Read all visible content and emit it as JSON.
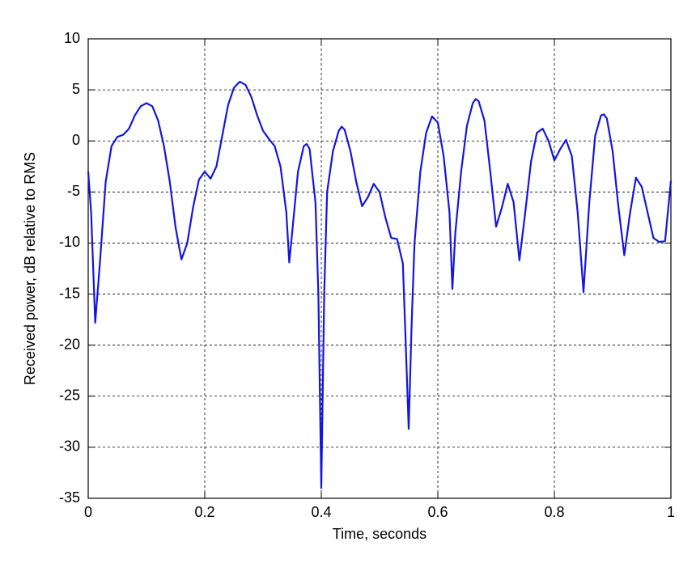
{
  "chart_data": {
    "type": "line",
    "xlabel": "Time, seconds",
    "ylabel": "Received power, dB relative to RMS",
    "x": [
      0,
      0.005,
      0.012,
      0.02,
      0.03,
      0.04,
      0.05,
      0.06,
      0.07,
      0.08,
      0.09,
      0.1,
      0.11,
      0.12,
      0.13,
      0.14,
      0.15,
      0.16,
      0.17,
      0.18,
      0.19,
      0.2,
      0.21,
      0.22,
      0.23,
      0.24,
      0.25,
      0.26,
      0.27,
      0.28,
      0.29,
      0.3,
      0.31,
      0.32,
      0.33,
      0.34,
      0.345,
      0.35,
      0.36,
      0.37,
      0.375,
      0.38,
      0.39,
      0.395,
      0.4,
      0.405,
      0.41,
      0.42,
      0.43,
      0.435,
      0.44,
      0.45,
      0.46,
      0.47,
      0.48,
      0.49,
      0.5,
      0.51,
      0.52,
      0.53,
      0.54,
      0.545,
      0.55,
      0.555,
      0.56,
      0.57,
      0.58,
      0.59,
      0.6,
      0.61,
      0.62,
      0.625,
      0.63,
      0.64,
      0.65,
      0.66,
      0.665,
      0.67,
      0.68,
      0.69,
      0.7,
      0.71,
      0.72,
      0.73,
      0.74,
      0.75,
      0.76,
      0.77,
      0.78,
      0.79,
      0.8,
      0.81,
      0.82,
      0.83,
      0.84,
      0.85,
      0.86,
      0.87,
      0.88,
      0.885,
      0.89,
      0.9,
      0.91,
      0.92,
      0.93,
      0.94,
      0.95,
      0.96,
      0.97,
      0.98,
      0.99,
      1.0
    ],
    "values": [
      -3,
      -7,
      -17.8,
      -12,
      -4,
      -0.5,
      0.4,
      0.6,
      1.2,
      2.5,
      3.4,
      3.7,
      3.4,
      2,
      -0.5,
      -4,
      -8.5,
      -11.6,
      -10,
      -6.5,
      -3.8,
      -3,
      -3.7,
      -2.5,
      0.5,
      3.5,
      5.2,
      5.8,
      5.5,
      4.3,
      2.5,
      1.0,
      0.2,
      -0.5,
      -2.5,
      -7,
      -11.9,
      -9,
      -3,
      -0.5,
      -0.3,
      -0.8,
      -6,
      -15,
      -34,
      -15,
      -5,
      -1,
      1,
      1.4,
      1.1,
      -1,
      -4,
      -6.4,
      -5.5,
      -4.2,
      -5,
      -7.5,
      -9.5,
      -9.6,
      -12,
      -20,
      -28.2,
      -18,
      -10,
      -3,
      0.8,
      2.4,
      1.8,
      -1.5,
      -7,
      -14.5,
      -9,
      -3,
      1.5,
      3.7,
      4.1,
      3.9,
      2,
      -3,
      -8.4,
      -6.5,
      -4.2,
      -6,
      -11.7,
      -7,
      -2,
      0.8,
      1.2,
      0,
      -1.9,
      -0.8,
      0.1,
      -1.5,
      -7,
      -14.8,
      -6,
      0.5,
      2.5,
      2.6,
      2.2,
      -1,
      -6.5,
      -11.2,
      -7,
      -3.6,
      -4.5,
      -7,
      -9.5,
      -9.9,
      -9.8,
      -3.9
    ],
    "color": "#1515e0",
    "xlim": [
      0,
      1
    ],
    "xticks": [
      0,
      0.2,
      0.4,
      0.6,
      0.8,
      1
    ],
    "ylim": [
      -35,
      10
    ],
    "yticks": [
      -35,
      -30,
      -25,
      -20,
      -15,
      -10,
      -5,
      0,
      5,
      10
    ],
    "grid": true
  }
}
